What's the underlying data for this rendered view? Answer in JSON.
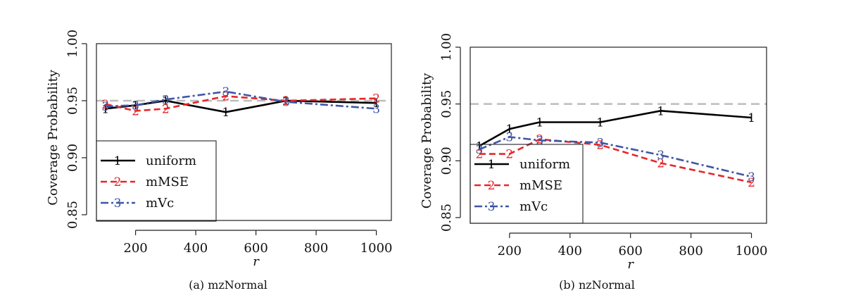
{
  "chart_data": [
    {
      "type": "line",
      "title": "",
      "caption": "(a) mzNormal",
      "xlabel": "r",
      "ylabel": "Coverage Probability",
      "xlim": [
        70,
        1050
      ],
      "ylim": [
        0.845,
        1.0
      ],
      "xticks": [
        200,
        400,
        600,
        800,
        1000
      ],
      "yticks": [
        0.85,
        0.9,
        0.95,
        1.0
      ],
      "ytick_labels": [
        "0.85",
        "0.90",
        "0.95",
        "1.00"
      ],
      "reference_line": {
        "y": 0.95,
        "color": "#bdbdbd",
        "style": "dashed"
      },
      "legend_position": "bottom-left",
      "series": [
        {
          "name": "uniform",
          "marker": "1",
          "color": "#000000",
          "style": "solid",
          "x": [
            100,
            200,
            300,
            500,
            700,
            1000
          ],
          "values": [
            0.943,
            0.946,
            0.95,
            0.94,
            0.95,
            0.948
          ]
        },
        {
          "name": "mMSE",
          "marker": "2",
          "color": "#e8262a",
          "style": "dashed",
          "x": [
            100,
            200,
            300,
            500,
            700,
            1000
          ],
          "values": [
            0.947,
            0.941,
            0.943,
            0.954,
            0.95,
            0.952
          ]
        },
        {
          "name": "mVc",
          "marker": "3",
          "color": "#3e56a5",
          "style": "dashdot",
          "x": [
            100,
            200,
            300,
            500,
            700,
            1000
          ],
          "values": [
            0.945,
            0.946,
            0.951,
            0.958,
            0.949,
            0.943
          ]
        }
      ]
    },
    {
      "type": "line",
      "title": "",
      "caption": "(b) nzNormal",
      "xlabel": "r",
      "ylabel": "Coverage Probability",
      "xlim": [
        70,
        1050
      ],
      "ylim": [
        0.845,
        1.0
      ],
      "xticks": [
        200,
        400,
        600,
        800,
        1000
      ],
      "yticks": [
        0.85,
        0.9,
        0.95,
        1.0
      ],
      "ytick_labels": [
        "0.85",
        "0.90",
        "0.95",
        "1.00"
      ],
      "reference_line": {
        "y": 0.95,
        "color": "#bdbdbd",
        "style": "dashed"
      },
      "legend_position": "bottom-left",
      "series": [
        {
          "name": "uniform",
          "marker": "1",
          "color": "#000000",
          "style": "solid",
          "x": [
            100,
            200,
            300,
            500,
            700,
            1000
          ],
          "values": [
            0.913,
            0.928,
            0.934,
            0.934,
            0.944,
            0.938
          ]
        },
        {
          "name": "mMSE",
          "marker": "2",
          "color": "#e8262a",
          "style": "dashed",
          "x": [
            100,
            200,
            300,
            500,
            700,
            1000
          ],
          "values": [
            0.906,
            0.906,
            0.919,
            0.914,
            0.898,
            0.881
          ]
        },
        {
          "name": "mVc",
          "marker": "3",
          "color": "#3e56a5",
          "style": "dashdot",
          "x": [
            100,
            200,
            300,
            500,
            700,
            1000
          ],
          "values": [
            0.91,
            0.921,
            0.918,
            0.916,
            0.905,
            0.886
          ]
        }
      ]
    }
  ]
}
